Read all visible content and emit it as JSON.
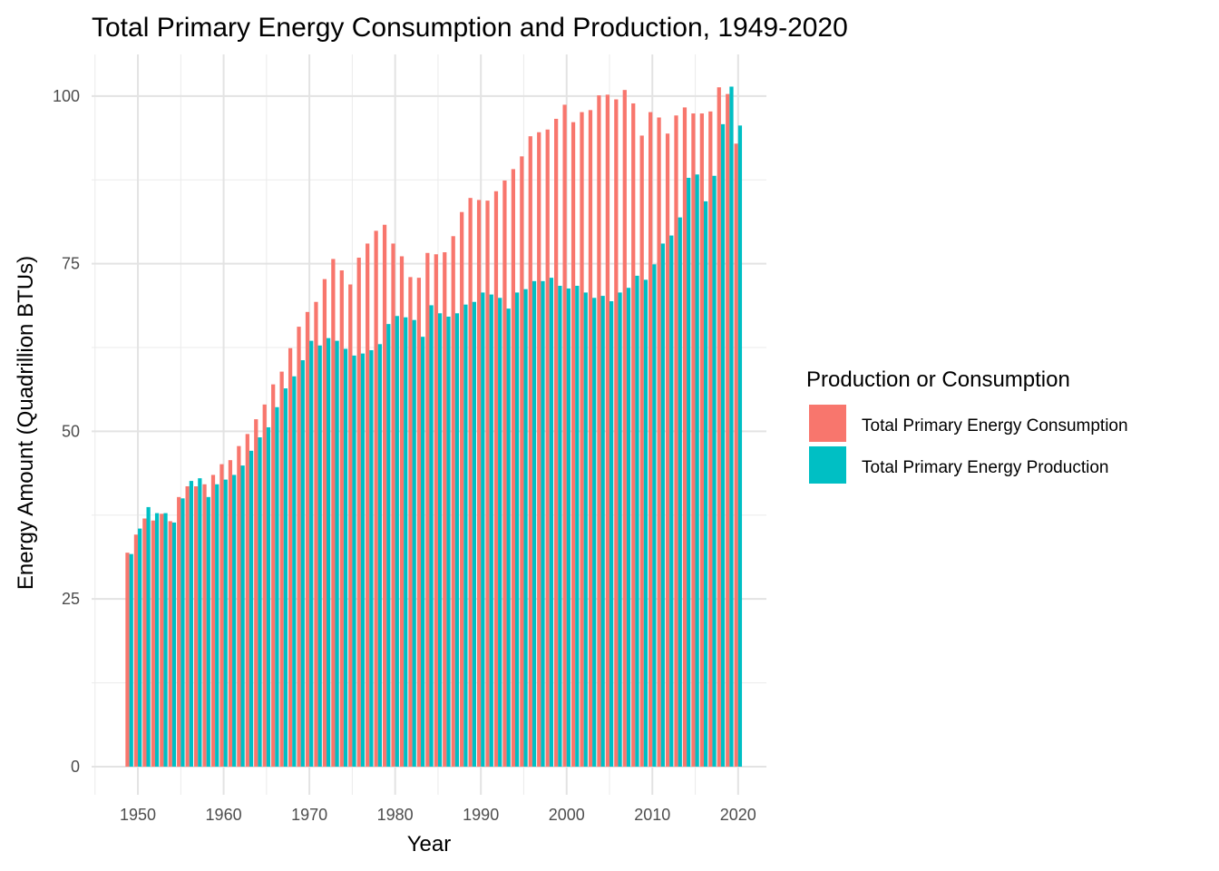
{
  "chart_data": {
    "type": "bar",
    "title": "Total Primary Energy Consumption and Production, 1949-2020",
    "xlabel": "Year",
    "ylabel": "Energy Amount (Quadrillion BTUs)",
    "x_ticks": [
      1950,
      1960,
      1970,
      1980,
      1990,
      2000,
      2010,
      2020
    ],
    "y_ticks": [
      0,
      25,
      50,
      75,
      100
    ],
    "xlim": [
      1944.6,
      2023.3
    ],
    "ylim": [
      -4.2,
      106.2
    ],
    "grid": true,
    "legend": {
      "title": "Production or Consumption",
      "position": "right"
    },
    "x": [
      1949,
      1950,
      1951,
      1952,
      1953,
      1954,
      1955,
      1956,
      1957,
      1958,
      1959,
      1960,
      1961,
      1962,
      1963,
      1964,
      1965,
      1966,
      1967,
      1968,
      1969,
      1970,
      1971,
      1972,
      1973,
      1974,
      1975,
      1976,
      1977,
      1978,
      1979,
      1980,
      1981,
      1982,
      1983,
      1984,
      1985,
      1986,
      1987,
      1988,
      1989,
      1990,
      1991,
      1992,
      1993,
      1994,
      1995,
      1996,
      1997,
      1998,
      1999,
      2000,
      2001,
      2002,
      2003,
      2004,
      2005,
      2006,
      2007,
      2008,
      2009,
      2010,
      2011,
      2012,
      2013,
      2014,
      2015,
      2016,
      2017,
      2018,
      2019,
      2020
    ],
    "series": [
      {
        "name": "Total Primary Energy Consumption",
        "color": "#F8766D",
        "values": [
          31.9,
          34.6,
          37.0,
          36.7,
          37.7,
          36.6,
          40.2,
          41.8,
          41.8,
          42.1,
          43.5,
          45.1,
          45.7,
          47.8,
          49.6,
          51.8,
          54.0,
          57.0,
          58.9,
          62.4,
          65.6,
          67.8,
          69.3,
          72.7,
          75.7,
          74.0,
          71.9,
          75.9,
          78.0,
          79.9,
          80.8,
          78.0,
          76.1,
          73.0,
          72.9,
          76.6,
          76.4,
          76.7,
          79.1,
          82.7,
          84.8,
          84.5,
          84.4,
          85.8,
          87.4,
          89.1,
          91.0,
          94.0,
          94.6,
          95.0,
          96.6,
          98.7,
          96.1,
          97.6,
          97.9,
          100.1,
          100.2,
          99.5,
          100.9,
          98.9,
          94.1,
          97.6,
          96.8,
          94.4,
          97.1,
          98.3,
          97.4,
          97.4,
          97.7,
          101.3,
          100.3,
          92.9
        ]
      },
      {
        "name": "Total Primary Energy Production",
        "color": "#00BFC4",
        "values": [
          31.7,
          35.5,
          38.7,
          37.8,
          37.8,
          36.4,
          40.0,
          42.6,
          43.0,
          40.2,
          42.1,
          42.8,
          43.5,
          44.9,
          47.1,
          49.1,
          50.6,
          53.6,
          56.4,
          58.2,
          60.6,
          63.5,
          62.8,
          63.9,
          63.5,
          62.3,
          61.3,
          61.6,
          62.1,
          63.0,
          66.0,
          67.2,
          67.0,
          66.6,
          64.1,
          68.8,
          67.6,
          67.1,
          67.6,
          68.9,
          69.3,
          70.7,
          70.4,
          69.9,
          68.3,
          70.7,
          71.2,
          72.4,
          72.4,
          72.9,
          71.7,
          71.3,
          71.7,
          70.7,
          69.9,
          70.2,
          69.4,
          70.7,
          71.4,
          73.2,
          72.6,
          74.9,
          78.0,
          79.2,
          81.9,
          87.8,
          88.3,
          84.3,
          88.1,
          95.8,
          101.4,
          95.6
        ]
      }
    ]
  }
}
